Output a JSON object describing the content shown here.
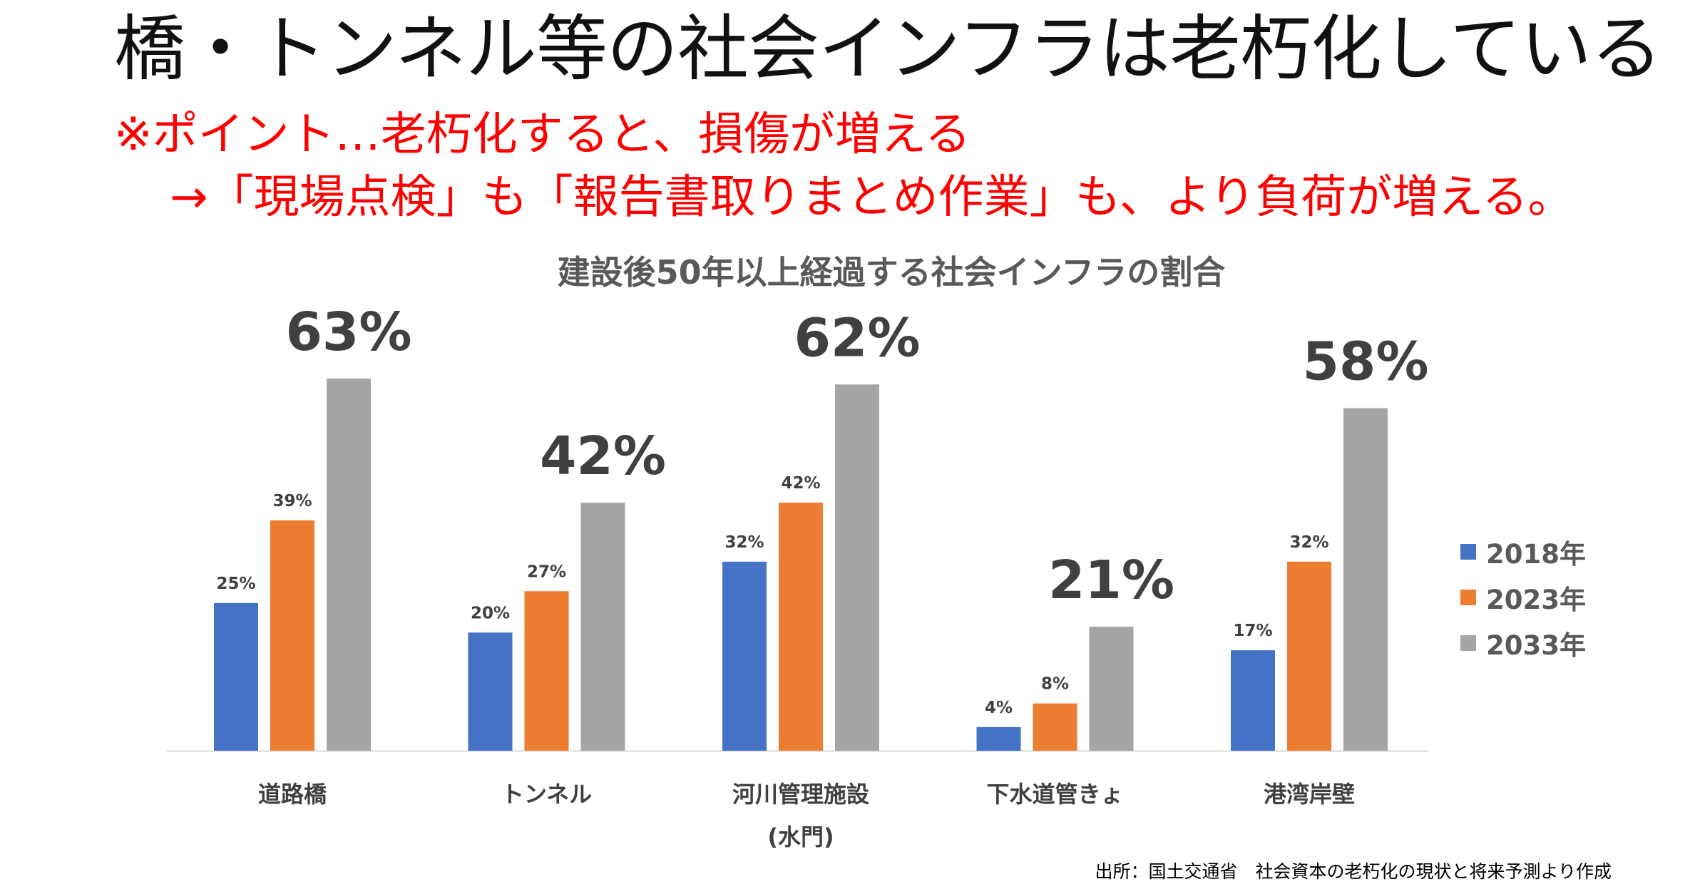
{
  "headline": "橋・トンネル等の社会インフラは老朽化している",
  "notes": {
    "line1": "※ポイント…老朽化すると、損傷が増える",
    "line2": "→「現場点検」も「報告書取りまとめ作業」も、より負荷が増える。"
  },
  "chart_data": {
    "type": "bar",
    "title": "建設後50年以上経過する社会インフラの割合",
    "categories": [
      "道路橋",
      "トンネル",
      "河川管理施設",
      "下水道管きょ",
      "港湾岸壁"
    ],
    "category_sublabels": [
      "",
      "",
      "(水門)",
      "",
      ""
    ],
    "series": [
      {
        "name": "2018年",
        "color": "#4472C4",
        "values": [
          25,
          20,
          32,
          4,
          17
        ],
        "labels": [
          "25%",
          "20%",
          "32%",
          "4%",
          "17%"
        ]
      },
      {
        "name": "2023年",
        "color": "#ED7D31",
        "values": [
          39,
          27,
          42,
          8,
          32
        ],
        "labels": [
          "39%",
          "27%",
          "42%",
          "8%",
          "32%"
        ]
      },
      {
        "name": "2033年",
        "color": "#A5A5A5",
        "values": [
          63,
          42,
          62,
          21,
          58
        ],
        "labels": [
          "63%",
          "42%",
          "62%",
          "21%",
          "58%"
        ]
      }
    ],
    "ylim": [
      0,
      63
    ],
    "xlabel": "",
    "ylabel": "",
    "grid": false,
    "legend_position": "right"
  },
  "source": "出所：国土交通省　社会資本の老朽化の現状と将来予測より作成"
}
